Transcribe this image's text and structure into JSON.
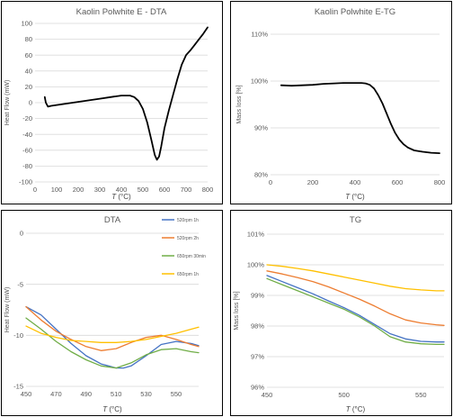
{
  "chart_data": [
    {
      "type": "line",
      "title": "Kaolin Polwhite E - DTA",
      "xlabel_italic": "T",
      "xlabel_unit": " (°C)",
      "ylabel": "Heat Flow (mW)",
      "xlim": [
        0,
        800
      ],
      "ylim": [
        -100,
        100
      ],
      "xticks": [
        0,
        100,
        200,
        300,
        400,
        500,
        600,
        700,
        800
      ],
      "yticks": [
        -100,
        -80,
        -60,
        -40,
        -20,
        0,
        20,
        40,
        60,
        80,
        100
      ],
      "grid": "horizontal",
      "series": [
        {
          "color": "#000000",
          "x": [
            45,
            50,
            60,
            75,
            100,
            150,
            200,
            250,
            300,
            350,
            400,
            440,
            460,
            480,
            500,
            520,
            540,
            555,
            565,
            575,
            585,
            600,
            620,
            640,
            660,
            680,
            700,
            720,
            740,
            760,
            780,
            800
          ],
          "y": [
            7,
            0,
            -5,
            -4,
            -3,
            -1,
            1,
            3,
            5,
            7,
            9,
            9,
            7,
            2,
            -8,
            -25,
            -48,
            -66,
            -72,
            -68,
            -55,
            -32,
            -10,
            10,
            30,
            48,
            60,
            66,
            73,
            80,
            87,
            95
          ]
        }
      ]
    },
    {
      "type": "line",
      "title": "Kaolin Polwhite E-TG",
      "xlabel_italic": "T",
      "xlabel_unit": " (°C)",
      "ylabel": "Mass loss [%]",
      "xlim": [
        0,
        800
      ],
      "ylim": [
        80,
        110
      ],
      "xticks": [
        0,
        200,
        400,
        600,
        800
      ],
      "yticks": [
        80,
        90,
        100,
        110
      ],
      "ytick_labels": [
        "80%",
        "90%",
        "100%",
        "110%"
      ],
      "grid": "horizontal",
      "series": [
        {
          "color": "#000000",
          "x": [
            50,
            100,
            150,
            200,
            250,
            300,
            350,
            400,
            430,
            450,
            470,
            490,
            510,
            530,
            550,
            570,
            590,
            610,
            630,
            650,
            680,
            720,
            760,
            800
          ],
          "y": [
            99.1,
            99.0,
            99.1,
            99.2,
            99.4,
            99.5,
            99.6,
            99.6,
            99.6,
            99.5,
            99.2,
            98.4,
            97.0,
            95.2,
            93.0,
            90.8,
            88.9,
            87.5,
            86.5,
            85.8,
            85.2,
            84.9,
            84.7,
            84.6
          ]
        }
      ]
    },
    {
      "type": "line",
      "title": "DTA",
      "xlabel_italic": "T",
      "xlabel_unit": " (°C)",
      "ylabel": "Heat Flow (mW)",
      "xlim": [
        450,
        565
      ],
      "ylim": [
        -15,
        0
      ],
      "xticks": [
        450,
        470,
        490,
        510,
        530,
        550
      ],
      "yticks": [
        -15,
        -10,
        -5,
        0
      ],
      "grid": "horizontal",
      "legend_position": "top-right",
      "series": [
        {
          "name": "520rpm 1h",
          "color": "#4472C4",
          "x": [
            450,
            460,
            470,
            480,
            490,
            500,
            505,
            510,
            515,
            520,
            530,
            540,
            550,
            560,
            565
          ],
          "y": [
            -7.2,
            -8.0,
            -9.4,
            -10.8,
            -12.0,
            -12.8,
            -13.0,
            -13.2,
            -13.2,
            -13.0,
            -12.0,
            -10.9,
            -10.6,
            -10.8,
            -11.0
          ]
        },
        {
          "name": "520rpm 2h",
          "color": "#ED7D31",
          "x": [
            450,
            460,
            470,
            480,
            490,
            500,
            510,
            520,
            530,
            540,
            550,
            560,
            565
          ],
          "y": [
            -7.2,
            -8.5,
            -9.6,
            -10.4,
            -11.1,
            -11.5,
            -11.3,
            -10.7,
            -10.2,
            -10.0,
            -10.4,
            -10.9,
            -11.1
          ]
        },
        {
          "name": "650rpm 30min",
          "color": "#70AD47",
          "x": [
            450,
            460,
            470,
            480,
            490,
            500,
            510,
            520,
            530,
            540,
            550,
            560,
            565
          ],
          "y": [
            -8.3,
            -9.4,
            -10.6,
            -11.6,
            -12.4,
            -13.0,
            -13.2,
            -12.7,
            -11.9,
            -11.4,
            -11.3,
            -11.6,
            -11.7
          ]
        },
        {
          "name": "650rpm 1h",
          "color": "#FFC000",
          "x": [
            450,
            460,
            470,
            480,
            490,
            500,
            510,
            520,
            530,
            540,
            550,
            560,
            565
          ],
          "y": [
            -9.1,
            -9.8,
            -10.2,
            -10.5,
            -10.6,
            -10.7,
            -10.7,
            -10.6,
            -10.4,
            -10.1,
            -9.8,
            -9.4,
            -9.2
          ]
        }
      ]
    },
    {
      "type": "line",
      "title": "TG",
      "xlabel_italic": "T",
      "xlabel_unit": " (°C)",
      "ylabel": "Mass loss [%]",
      "xlim": [
        450,
        565
      ],
      "ylim": [
        96,
        101
      ],
      "xticks": [
        450,
        500,
        550
      ],
      "yticks": [
        96,
        97,
        98,
        99,
        100,
        101
      ],
      "ytick_labels": [
        "96%",
        "97%",
        "98%",
        "99%",
        "100%",
        "101%"
      ],
      "grid": "horizontal",
      "series": [
        {
          "color": "#4472C4",
          "x": [
            450,
            460,
            470,
            480,
            490,
            500,
            510,
            520,
            530,
            540,
            550,
            560,
            565
          ],
          "y": [
            99.65,
            99.45,
            99.25,
            99.05,
            98.82,
            98.6,
            98.35,
            98.05,
            97.75,
            97.58,
            97.5,
            97.48,
            97.48
          ]
        },
        {
          "color": "#ED7D31",
          "x": [
            450,
            460,
            470,
            480,
            490,
            500,
            510,
            520,
            530,
            540,
            550,
            560,
            565
          ],
          "y": [
            99.8,
            99.7,
            99.58,
            99.45,
            99.28,
            99.08,
            98.88,
            98.65,
            98.4,
            98.2,
            98.1,
            98.04,
            98.02
          ]
        },
        {
          "color": "#70AD47",
          "x": [
            450,
            460,
            470,
            480,
            490,
            500,
            510,
            520,
            530,
            540,
            550,
            560,
            565
          ],
          "y": [
            99.55,
            99.35,
            99.15,
            98.95,
            98.75,
            98.55,
            98.3,
            98.0,
            97.65,
            97.48,
            97.42,
            97.4,
            97.4
          ]
        },
        {
          "color": "#FFC000",
          "x": [
            450,
            460,
            470,
            480,
            490,
            500,
            510,
            520,
            530,
            540,
            550,
            560,
            565
          ],
          "y": [
            100.0,
            99.95,
            99.88,
            99.8,
            99.7,
            99.6,
            99.5,
            99.4,
            99.3,
            99.22,
            99.18,
            99.15,
            99.15
          ]
        }
      ]
    }
  ]
}
